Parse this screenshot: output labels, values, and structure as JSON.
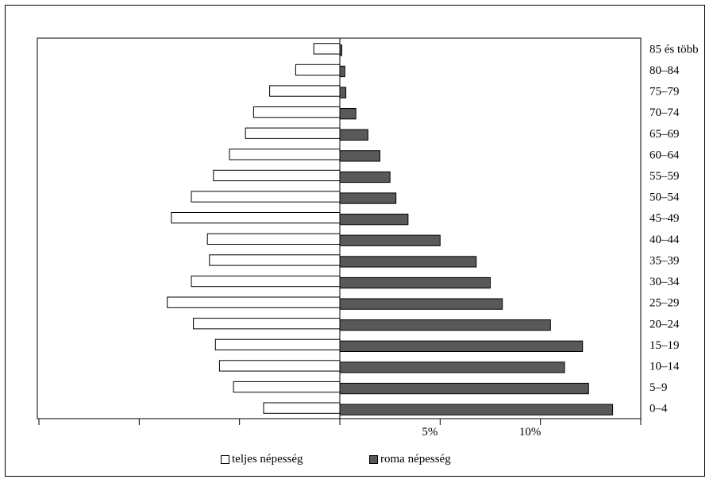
{
  "chart_data": {
    "type": "bar",
    "orientation": "horizontal",
    "categories": [
      "0–4",
      "5–9",
      "10–14",
      "15–19",
      "20–24",
      "25–29",
      "30–34",
      "35–39",
      "40–44",
      "45–49",
      "50–54",
      "55–59",
      "60–64",
      "65–69",
      "70–74",
      "75–79",
      "80–84",
      "85 és több"
    ],
    "series": [
      {
        "name": "teljes népesség",
        "color": "#ffffff",
        "side": "left",
        "values": [
          3.8,
          5.3,
          6.0,
          6.2,
          7.3,
          8.6,
          7.4,
          6.5,
          6.6,
          8.4,
          7.4,
          6.3,
          5.5,
          4.7,
          4.3,
          3.5,
          2.2,
          1.3
        ]
      },
      {
        "name": "roma népesség",
        "color": "#595959",
        "side": "right",
        "values": [
          13.6,
          12.4,
          11.2,
          12.1,
          10.5,
          8.1,
          7.5,
          6.8,
          5.0,
          3.4,
          2.8,
          2.5,
          2.0,
          1.4,
          0.8,
          0.3,
          0.25,
          0.1
        ]
      }
    ],
    "xaxis_ticks": [
      {
        "value": -15,
        "label": ""
      },
      {
        "value": -10,
        "label": ""
      },
      {
        "value": -5,
        "label": ""
      },
      {
        "value": 0,
        "label": ""
      },
      {
        "value": 5,
        "label": "5%"
      },
      {
        "value": 10,
        "label": "10%"
      },
      {
        "value": 15,
        "label": ""
      }
    ],
    "xlim": [
      -15,
      15
    ],
    "title": "",
    "xlabel": "",
    "ylabel": "",
    "grid": false,
    "legend_position": "bottom"
  },
  "legend": {
    "items": [
      {
        "label": "teljes népesség",
        "color": "#ffffff"
      },
      {
        "label": "roma népesség",
        "color": "#595959"
      }
    ]
  }
}
